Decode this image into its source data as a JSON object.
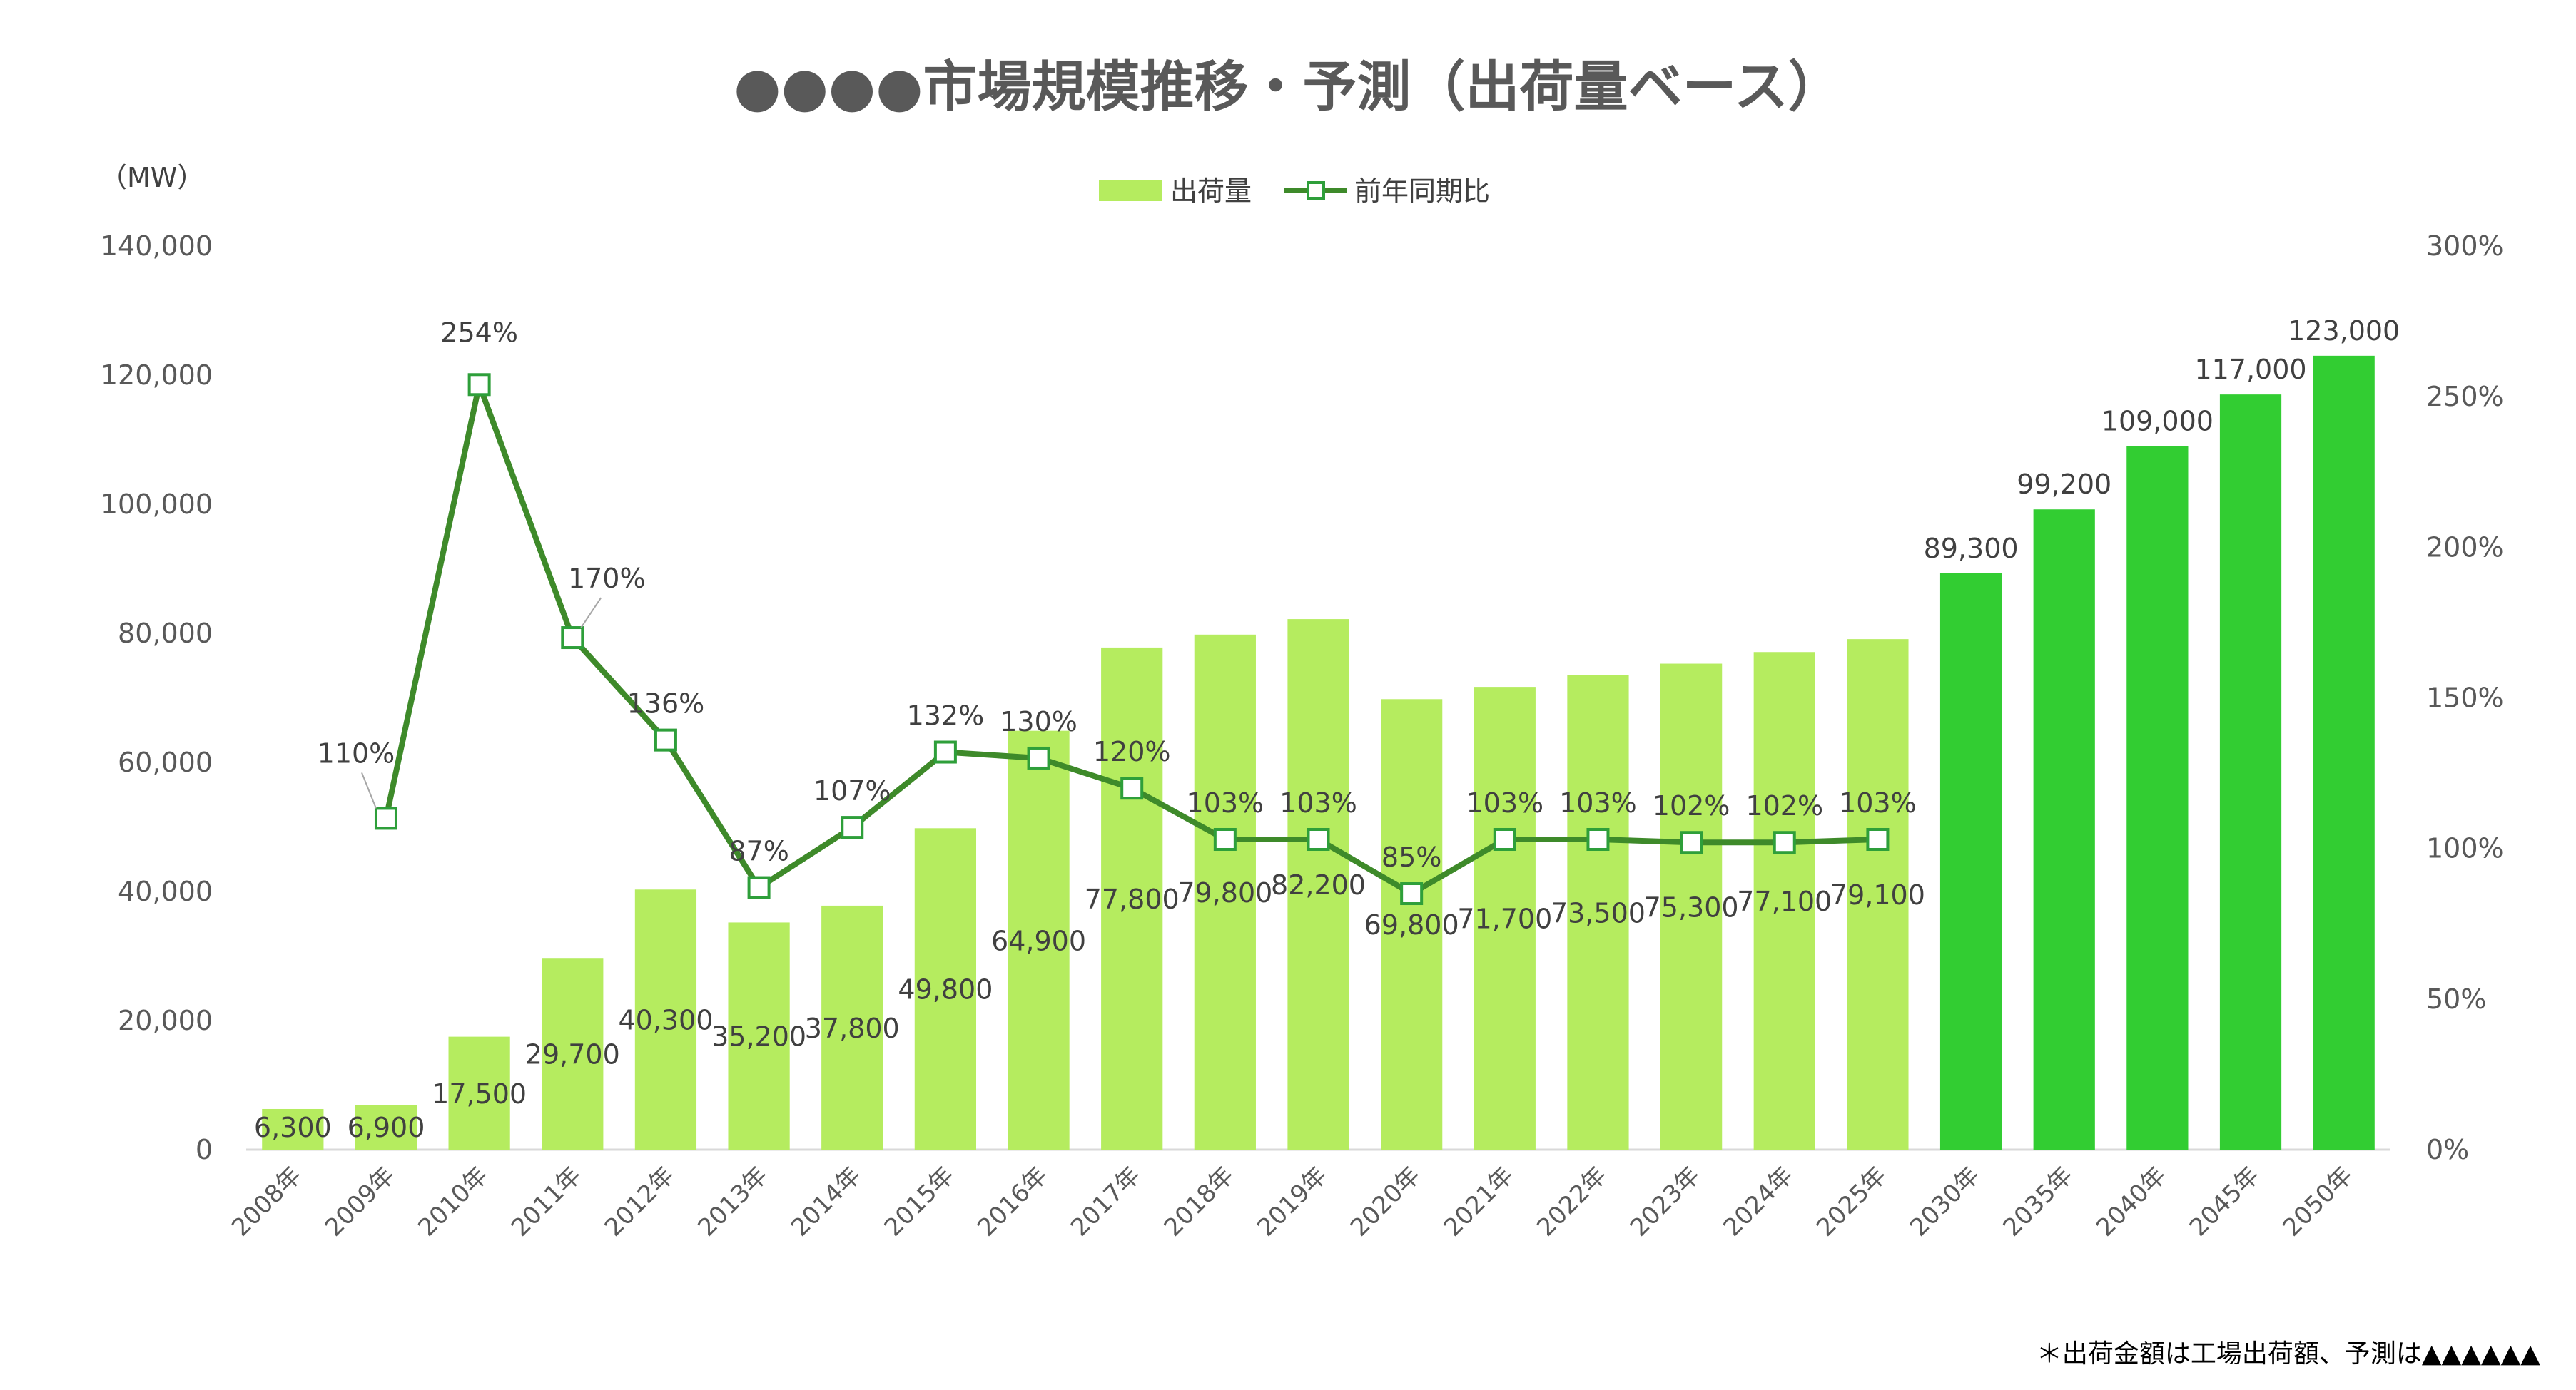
{
  "title": "●●●●市場規模推移・予測（出荷量ベース）",
  "footnote": "＊出荷金額は工場出荷額、予測は▲▲▲▲▲▲",
  "colors": {
    "bar_actual": "#b5ec5f",
    "bar_forecast": "#32cd32",
    "line": "#3e8a2a",
    "marker_fill": "#ffffff",
    "marker_stroke": "#2e9f3a",
    "axis_line": "#d9d9d9",
    "text": "#404040"
  },
  "chart_data": {
    "type": "bar",
    "title": "●●●●市場規模推移・予測（出荷量ベース）",
    "legend_position": "top-center",
    "grid": false,
    "left_axis": {
      "unit_label": "（MW）",
      "ylim": [
        0,
        140000
      ],
      "ticks": [
        "0",
        "20,000",
        "40,000",
        "60,000",
        "80,000",
        "100,000",
        "120,000",
        "140,000"
      ],
      "tick_values": [
        0,
        20000,
        40000,
        60000,
        80000,
        100000,
        120000,
        140000
      ]
    },
    "right_axis": {
      "ylim": [
        0,
        300
      ],
      "ticks": [
        "0%",
        "50%",
        "100%",
        "150%",
        "200%",
        "250%",
        "300%"
      ],
      "tick_values": [
        0,
        50,
        100,
        150,
        200,
        250,
        300
      ]
    },
    "categories": [
      "2008年",
      "2009年",
      "2010年",
      "2011年",
      "2012年",
      "2013年",
      "2014年",
      "2015年",
      "2016年",
      "2017年",
      "2018年",
      "2019年",
      "2020年",
      "2021年",
      "2022年",
      "2023年",
      "2024年",
      "2025年",
      "2030年",
      "2035年",
      "2040年",
      "2045年",
      "2050年"
    ],
    "series": [
      {
        "name": "出荷量",
        "type": "bar",
        "axis": "left",
        "values": [
          6300,
          6900,
          17500,
          29700,
          40300,
          35200,
          37800,
          49800,
          64900,
          77800,
          79800,
          82200,
          69800,
          71700,
          73500,
          75300,
          77100,
          79100,
          89300,
          99200,
          109000,
          117000,
          123000
        ],
        "labels": [
          "6,300",
          "6,900",
          "17,500",
          "29,700",
          "40,300",
          "35,200",
          "37,800",
          "49,800",
          "64,900",
          "77,800",
          "79,800",
          "82,200",
          "69,800",
          "71,700",
          "73,500",
          "75,300",
          "77,100",
          "79,100",
          "89,300",
          "99,200",
          "109,000",
          "117,000",
          "123,000"
        ],
        "forecast_from_index": 18
      },
      {
        "name": "前年同期比",
        "type": "line",
        "axis": "right",
        "values": [
          null,
          110,
          254,
          170,
          136,
          87,
          107,
          132,
          130,
          120,
          103,
          103,
          85,
          103,
          103,
          102,
          102,
          103,
          null,
          null,
          null,
          null,
          null
        ],
        "labels": [
          null,
          "110%",
          "254%",
          "170%",
          "136%",
          "87%",
          "107%",
          "132%",
          "130%",
          "120%",
          "103%",
          "103%",
          "85%",
          "103%",
          "103%",
          "102%",
          "102%",
          "103%",
          null,
          null,
          null,
          null,
          null
        ]
      }
    ]
  }
}
